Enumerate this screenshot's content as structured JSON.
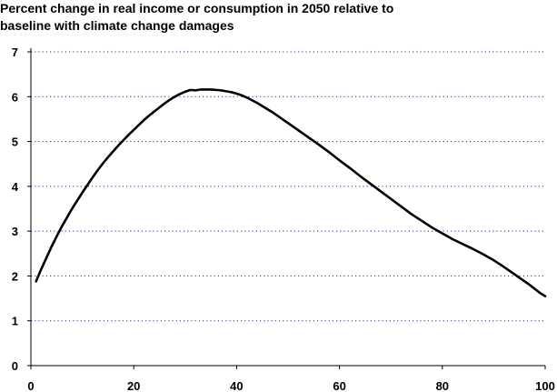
{
  "chart_data": {
    "type": "line",
    "title_lines": [
      "Percent change in real income or consumption in 2050 relative to",
      "baseline with climate change damages"
    ],
    "xlabel": "",
    "ylabel": "",
    "xlim": [
      0,
      100
    ],
    "ylim": [
      0,
      7
    ],
    "x_ticks": [
      "0",
      "20",
      "40",
      "60",
      "80",
      "100"
    ],
    "y_ticks": [
      "0",
      "1",
      "2",
      "3",
      "4",
      "5",
      "6",
      "7"
    ],
    "grid": "horizontal dotted",
    "legend": "none",
    "series": [
      {
        "color": "#000000",
        "x": [
          1,
          2,
          3,
          4,
          5,
          6,
          7,
          8,
          9,
          10,
          11,
          12,
          13,
          14,
          15,
          16,
          17,
          18,
          19,
          20,
          21,
          22,
          23,
          24,
          25,
          26,
          27,
          28,
          29,
          30,
          31,
          32,
          33,
          34,
          35,
          36,
          37,
          38,
          39,
          40,
          41,
          42,
          43,
          44,
          45,
          46,
          47,
          48,
          49,
          50,
          52,
          54,
          56,
          58,
          60,
          62,
          64,
          66,
          68,
          70,
          72,
          74,
          76,
          78,
          80,
          82,
          84,
          86,
          88,
          90,
          92,
          93,
          94,
          95,
          96,
          97,
          98,
          99,
          100
        ],
        "y": [
          1.88,
          2.15,
          2.4,
          2.65,
          2.88,
          3.1,
          3.3,
          3.5,
          3.68,
          3.86,
          4.03,
          4.2,
          4.36,
          4.51,
          4.65,
          4.78,
          4.91,
          5.03,
          5.15,
          5.26,
          5.37,
          5.48,
          5.58,
          5.67,
          5.76,
          5.85,
          5.93,
          6.0,
          6.06,
          6.11,
          6.15,
          6.14,
          6.16,
          6.16,
          6.16,
          6.15,
          6.14,
          6.12,
          6.1,
          6.07,
          6.03,
          5.98,
          5.92,
          5.86,
          5.79,
          5.72,
          5.65,
          5.57,
          5.49,
          5.41,
          5.25,
          5.09,
          4.93,
          4.76,
          4.58,
          4.41,
          4.23,
          4.06,
          3.89,
          3.72,
          3.55,
          3.38,
          3.23,
          3.08,
          2.95,
          2.82,
          2.71,
          2.6,
          2.48,
          2.35,
          2.2,
          2.12,
          2.04,
          1.96,
          1.88,
          1.8,
          1.71,
          1.62,
          1.55
        ]
      }
    ]
  }
}
